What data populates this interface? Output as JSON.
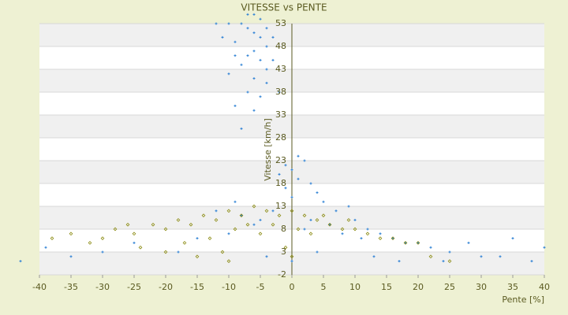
{
  "chart_data": {
    "type": "scatter",
    "title": "VITESSE vs PENTE",
    "xlabel": "Pente [%]",
    "ylabel": "Vitesse [km/h]",
    "xlim": [
      -40,
      40
    ],
    "xticks": [
      -40,
      -35,
      -30,
      -25,
      -20,
      -15,
      -10,
      -5,
      0,
      5,
      10,
      15,
      20,
      25,
      30,
      35,
      40
    ],
    "ylim": [
      -2,
      53
    ],
    "yticks": [
      -2,
      3,
      8,
      13,
      18,
      23,
      28,
      33,
      38,
      43,
      48,
      53
    ],
    "grid": true,
    "series": [
      {
        "color": "#2a7fd4",
        "x": [
          -8,
          -7,
          -6,
          -5,
          -9,
          -4,
          -6,
          -7,
          -5,
          -8,
          -10,
          -6,
          -4,
          -7,
          -5,
          -9,
          -6,
          -8,
          -4,
          -3,
          -5,
          -6,
          -7,
          -10,
          -11,
          -12,
          -9,
          -4,
          -3,
          -2,
          -2,
          -1,
          0,
          1,
          2,
          3,
          4,
          -1,
          0,
          1,
          -3,
          -5,
          -8,
          -10,
          5,
          7,
          9,
          10,
          12,
          14,
          16,
          18,
          20,
          22,
          -15,
          -18,
          -25,
          -30,
          -35,
          -39,
          -43,
          25,
          28,
          30,
          35,
          38,
          40,
          6,
          8,
          11,
          3,
          2,
          0,
          -4,
          -6,
          -12,
          -9,
          4,
          13,
          17,
          24,
          33
        ],
        "values": [
          53,
          52,
          51,
          50,
          49,
          48,
          47,
          46,
          45,
          44,
          42,
          41,
          40,
          38,
          37,
          35,
          34,
          30,
          52,
          50,
          54,
          55,
          55,
          53,
          50,
          53,
          46,
          43,
          45,
          38,
          20,
          22,
          21,
          19,
          23,
          18,
          16,
          17,
          15,
          24,
          12,
          10,
          11,
          7,
          14,
          12,
          13,
          10,
          8,
          7,
          6,
          5,
          5,
          4,
          6,
          3,
          5,
          3,
          2,
          4,
          1,
          3,
          5,
          2,
          6,
          1,
          4,
          9,
          7,
          6,
          10,
          8,
          1,
          2,
          9,
          12,
          14,
          3,
          2,
          1,
          1,
          2
        ]
      },
      {
        "color": "#8a8a10",
        "x": [
          -35,
          -30,
          -28,
          -25,
          -22,
          -20,
          -18,
          -16,
          -14,
          -12,
          -10,
          -8,
          -6,
          -4,
          -2,
          0,
          2,
          4,
          6,
          8,
          10,
          12,
          14,
          16,
          18,
          20,
          -24,
          -20,
          -15,
          -10,
          -5,
          -3,
          1,
          3,
          -9,
          -13,
          -17,
          -26,
          -32,
          -38,
          22,
          25,
          -7,
          5,
          9,
          -1,
          0,
          -11
        ],
        "values": [
          7,
          6,
          8,
          7,
          9,
          8,
          10,
          9,
          11,
          10,
          12,
          11,
          13,
          12,
          11,
          12,
          11,
          10,
          9,
          8,
          8,
          7,
          6,
          6,
          5,
          5,
          4,
          3,
          2,
          1,
          7,
          9,
          8,
          7,
          8,
          6,
          5,
          9,
          5,
          6,
          2,
          1,
          9,
          11,
          10,
          4,
          2,
          3
        ]
      }
    ]
  }
}
